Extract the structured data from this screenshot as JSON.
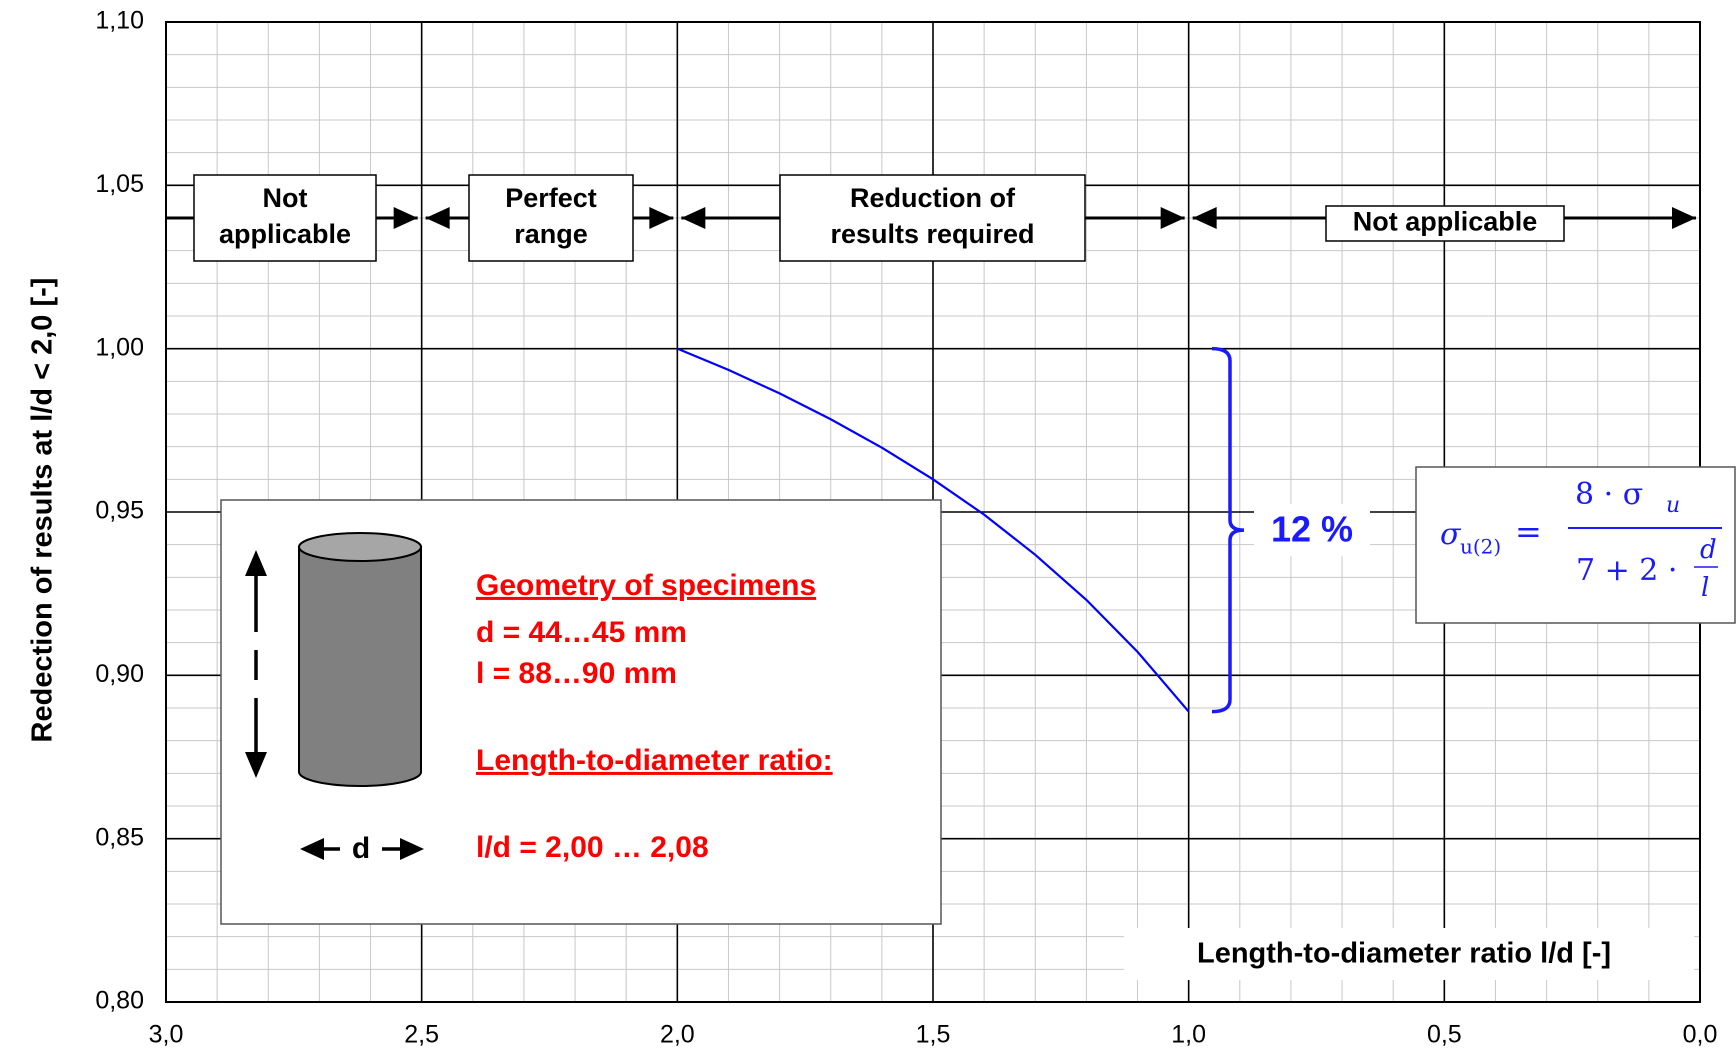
{
  "chart_data": {
    "type": "line",
    "x": [
      2.0,
      1.9,
      1.8,
      1.7,
      1.6,
      1.5,
      1.4,
      1.3,
      1.2,
      1.1,
      1.0
    ],
    "values": [
      1.0,
      0.9935,
      0.9863,
      0.9784,
      0.9697,
      0.96,
      0.9492,
      0.9369,
      0.9231,
      0.9072,
      0.8889
    ],
    "color": "#0000ff",
    "xlim": [
      3.0,
      0.0
    ],
    "ylim": [
      0.8,
      1.1
    ],
    "xticks": [
      {
        "value": 3.0,
        "label": "3,0"
      },
      {
        "value": 2.5,
        "label": "2,5"
      },
      {
        "value": 2.0,
        "label": "2,0"
      },
      {
        "value": 1.5,
        "label": "1,5"
      },
      {
        "value": 1.0,
        "label": "1,0"
      },
      {
        "value": 0.5,
        "label": "0,5"
      },
      {
        "value": 0.0,
        "label": "0,0"
      }
    ],
    "yticks": [
      {
        "value": 0.8,
        "label": "0,80"
      },
      {
        "value": 0.85,
        "label": "0,85"
      },
      {
        "value": 0.9,
        "label": "0,90"
      },
      {
        "value": 0.95,
        "label": "0,95"
      },
      {
        "value": 1.0,
        "label": "1,00"
      },
      {
        "value": 1.05,
        "label": "1,05"
      },
      {
        "value": 1.1,
        "label": "1,10"
      }
    ],
    "xminorticks": [
      2.9,
      2.8,
      2.7,
      2.6,
      2.4,
      2.3,
      2.2,
      2.1,
      1.9,
      1.8,
      1.7,
      1.6,
      1.4,
      1.3,
      1.2,
      1.1,
      0.9,
      0.8,
      0.7,
      0.6,
      0.4,
      0.3,
      0.2,
      0.1
    ],
    "yminorticks": [
      0.81,
      0.82,
      0.83,
      0.84,
      0.86,
      0.87,
      0.88,
      0.89,
      0.91,
      0.92,
      0.93,
      0.94,
      0.96,
      0.97,
      0.98,
      0.99,
      1.01,
      1.02,
      1.03,
      1.04,
      1.06,
      1.07,
      1.08,
      1.09
    ],
    "grid": true,
    "xlabel": "Length-to-diameter ratio l/d [-]",
    "ylabel": "Redection of results at l/d < 2,0 [-]",
    "ranges": [
      [
        "Not",
        "applicable"
      ],
      [
        "Perfect",
        "range"
      ],
      [
        "Reduction of",
        "results required"
      ],
      [
        "Not applicable"
      ]
    ],
    "bracket_label": "12 %",
    "formula": {
      "lhs": "σ",
      "lhs_sub": "u(2)",
      "eq": "=",
      "num": "8 · σ",
      "num_sub": "u",
      "den": "7 + 2 ·",
      "den_num": "d",
      "den_den": "l"
    },
    "inset": {
      "title": "Geometry of specimens",
      "d": "d = 44…45 mm",
      "l": "l = 88…90 mm",
      "ratio_title": "Length-to-diameter ratio:",
      "ratio": "l/d = 2,00 … 2,08",
      "d_label": "d"
    }
  }
}
